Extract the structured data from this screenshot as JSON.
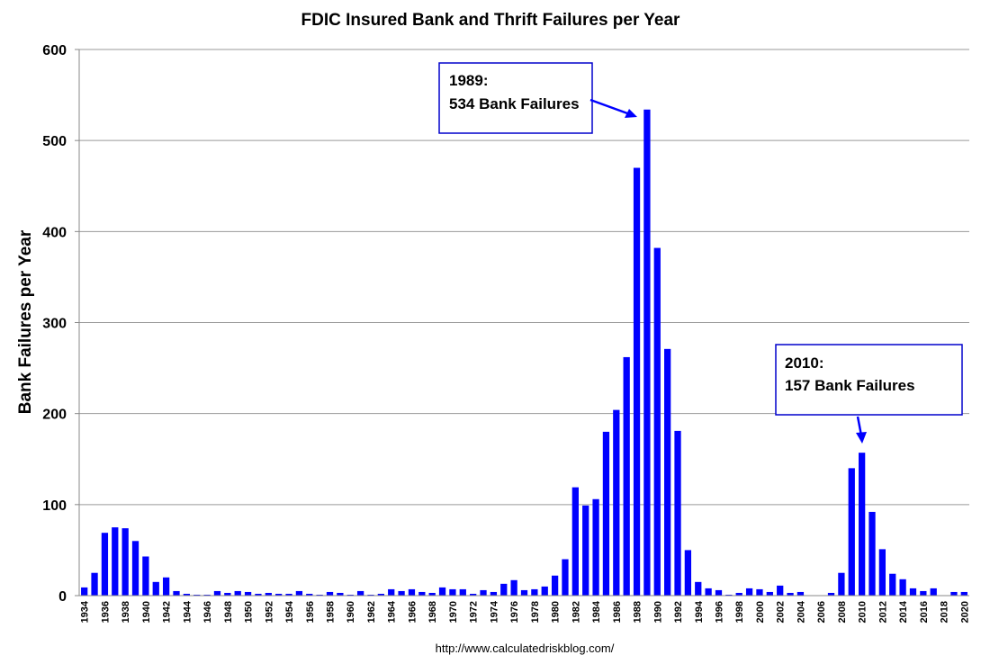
{
  "chart_data": {
    "type": "bar",
    "title": "FDIC Insured Bank and Thrift Failures per Year",
    "y_label": "Bank Failures per Year",
    "source": "http://www.calculatedriskblog.com/",
    "annotations": [
      {
        "lines": [
          "1989:",
          "534 Bank Failures"
        ]
      },
      {
        "lines": [
          "2010:",
          "157 Bank Failures"
        ]
      }
    ],
    "categories": [
      "1934",
      null,
      "1936",
      null,
      "1938",
      null,
      "1940",
      null,
      "1942",
      null,
      "1944",
      null,
      "1946",
      null,
      "1948",
      null,
      "1950",
      null,
      "1952",
      null,
      "1954",
      null,
      "1956",
      null,
      "1958",
      null,
      "1960",
      null,
      "1962",
      null,
      "1964",
      null,
      "1966",
      null,
      "1968",
      null,
      "1970",
      null,
      "1972",
      null,
      "1974",
      null,
      "1976",
      null,
      "1978",
      null,
      "1980",
      null,
      "1982",
      null,
      "1984",
      null,
      "1986",
      null,
      "1988",
      null,
      "1990",
      null,
      "1992",
      null,
      "1994",
      null,
      "1996",
      null,
      "1998",
      null,
      "2000",
      null,
      "2002",
      null,
      "2004",
      null,
      "2006",
      null,
      "2008",
      null,
      "2010",
      null,
      "2012",
      null,
      "2014",
      null,
      "2016",
      null,
      "2018",
      null,
      "2020"
    ],
    "values": [
      9,
      25,
      69,
      75,
      74,
      60,
      43,
      15,
      20,
      5,
      2,
      1,
      1,
      5,
      3,
      5,
      4,
      2,
      3,
      2,
      2,
      5,
      2,
      1,
      4,
      3,
      1,
      5,
      1,
      2,
      7,
      5,
      7,
      4,
      3,
      9,
      7,
      7,
      2,
      6,
      4,
      13,
      17,
      6,
      7,
      10,
      22,
      40,
      119,
      99,
      106,
      180,
      204,
      262,
      470,
      534,
      382,
      271,
      181,
      50,
      15,
      8,
      6,
      1,
      3,
      8,
      7,
      4,
      11,
      3,
      4,
      0,
      0,
      3,
      25,
      140,
      157,
      92,
      51,
      24,
      18,
      8,
      5,
      8,
      0,
      4,
      4
    ],
    "color": "#0000ff",
    "ylim": [
      0,
      600
    ],
    "yticks": [
      0,
      100,
      200,
      300,
      400,
      500,
      600
    ],
    "grid": true
  }
}
